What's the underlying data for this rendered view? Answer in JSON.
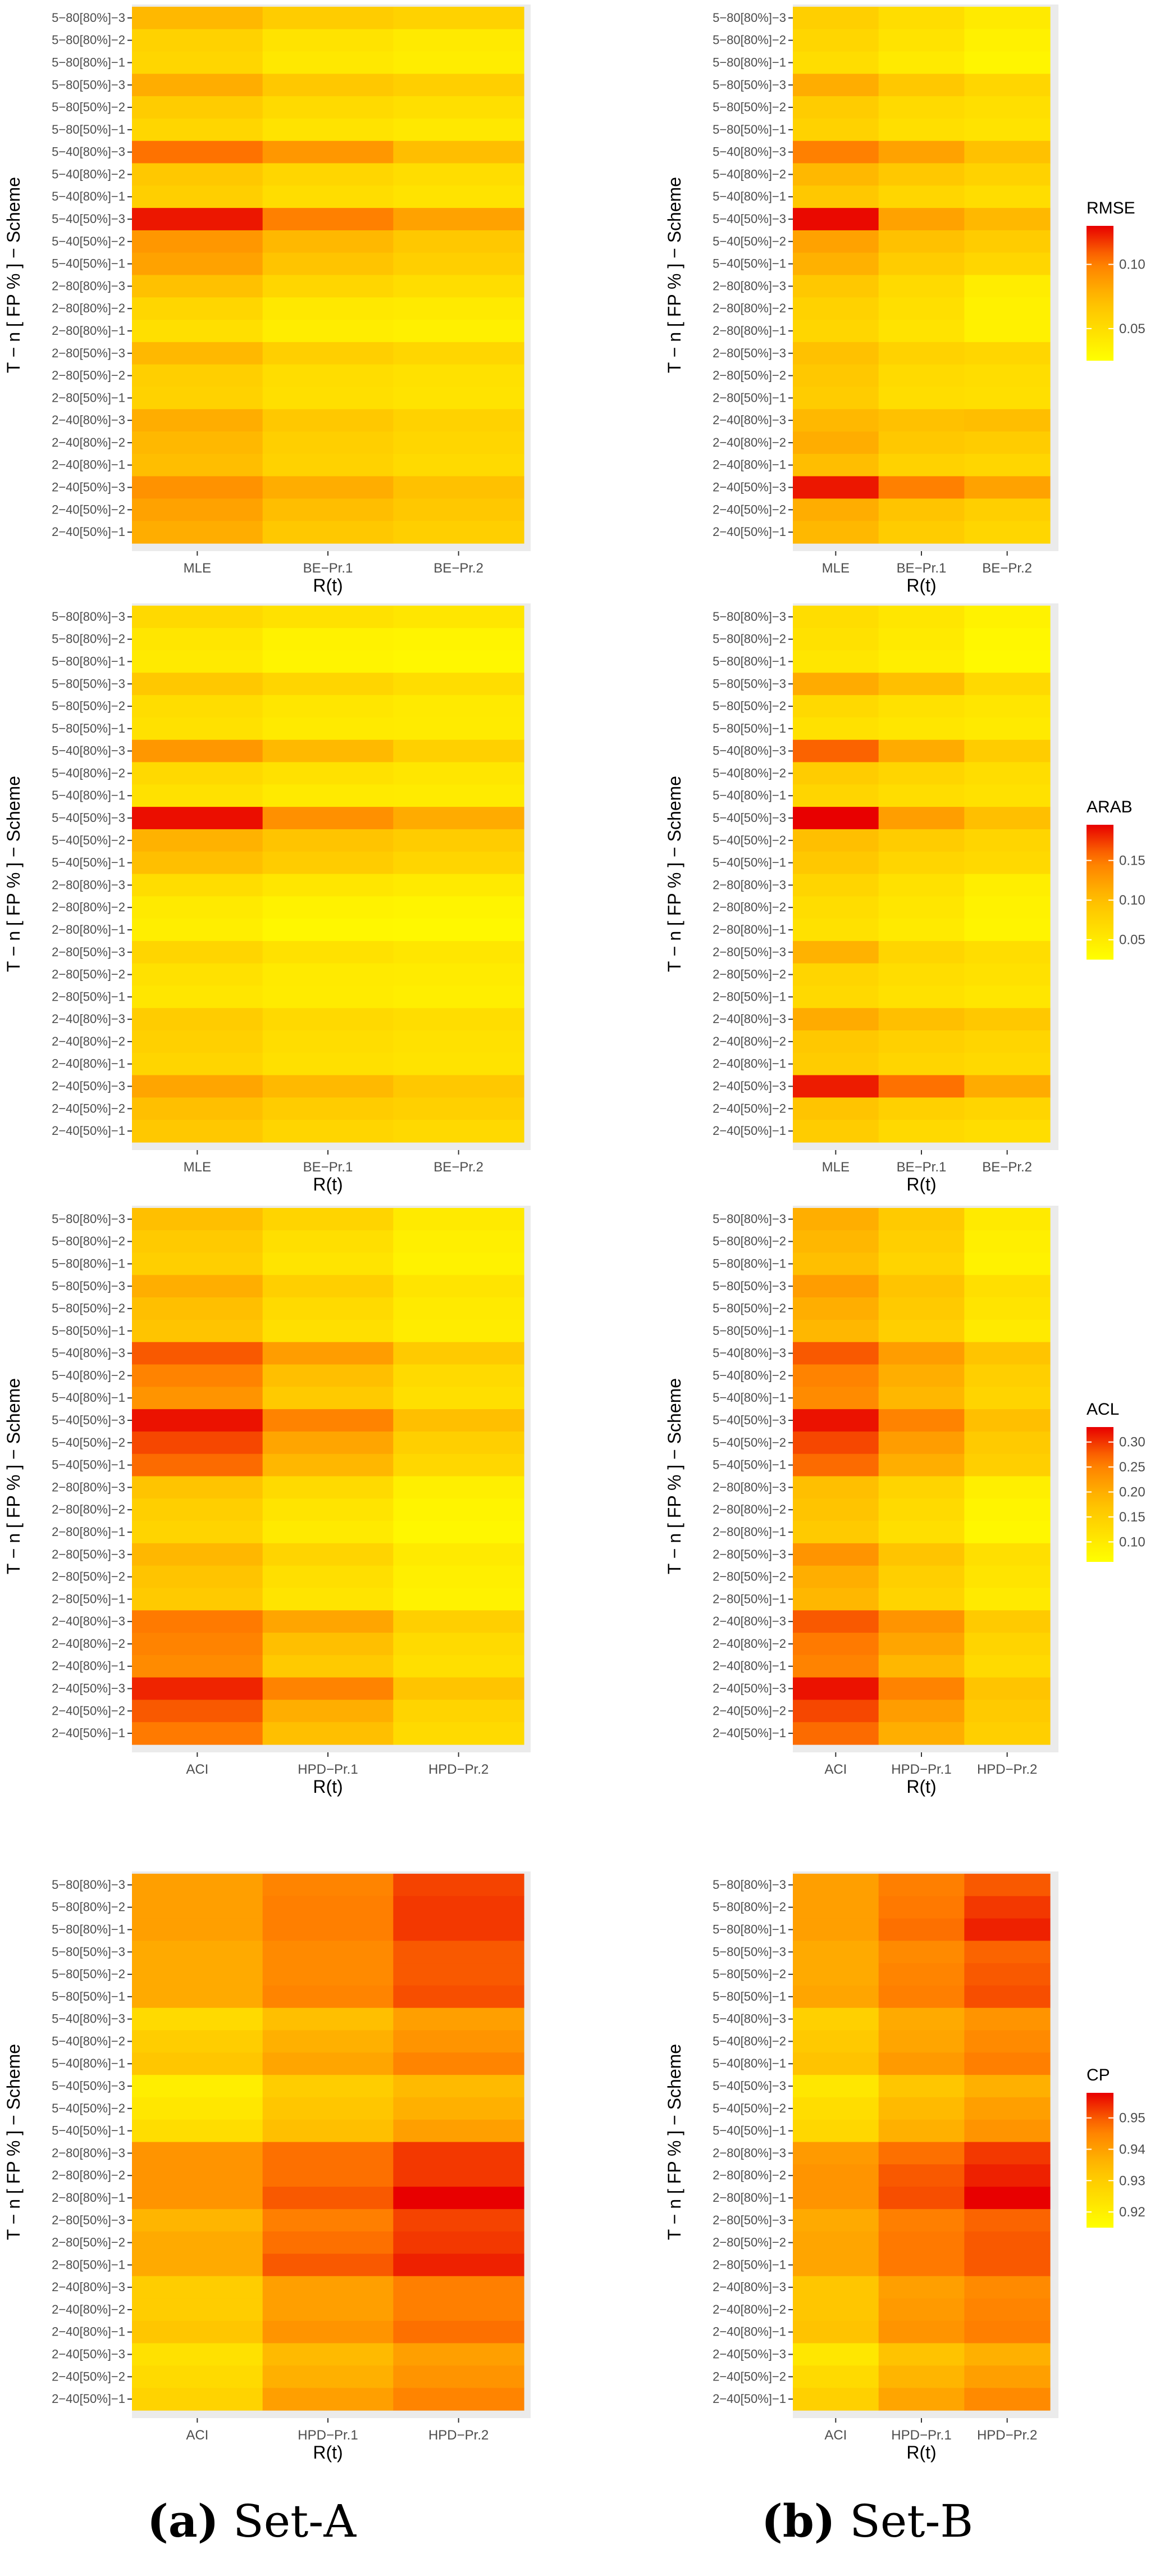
{
  "page": {
    "captions": [
      {
        "tag": "(a)",
        "text": "Set-A"
      },
      {
        "tag": "(b)",
        "text": "Set-B"
      }
    ]
  },
  "common": {
    "y_title": "T − n [ FP % ] − Scheme",
    "x_title": "R(t)",
    "rows": [
      "5−80[80%]−3",
      "5−80[80%]−2",
      "5−80[80%]−1",
      "5−80[50%]−3",
      "5−80[50%]−2",
      "5−80[50%]−1",
      "5−40[80%]−3",
      "5−40[80%]−2",
      "5−40[80%]−1",
      "5−40[50%]−3",
      "5−40[50%]−2",
      "5−40[50%]−1",
      "2−80[80%]−3",
      "2−80[80%]−2",
      "2−80[80%]−1",
      "2−80[50%]−3",
      "2−80[50%]−2",
      "2−80[50%]−1",
      "2−40[80%]−3",
      "2−40[80%]−2",
      "2−40[80%]−1",
      "2−40[50%]−3",
      "2−40[50%]−2",
      "2−40[50%]−1"
    ]
  },
  "chart_data": [
    {
      "type": "heatmap",
      "panel": "Set-A",
      "metric": "RMSE",
      "columns": [
        "MLE",
        "BE−Pr.1",
        "BE−Pr.2"
      ],
      "values": [
        [
          0.075,
          0.062,
          0.058
        ],
        [
          0.058,
          0.045,
          0.04
        ],
        [
          0.055,
          0.042,
          0.038
        ],
        [
          0.08,
          0.065,
          0.06
        ],
        [
          0.062,
          0.052,
          0.048
        ],
        [
          0.055,
          0.045,
          0.042
        ],
        [
          0.105,
          0.09,
          0.072
        ],
        [
          0.065,
          0.055,
          0.05
        ],
        [
          0.06,
          0.05,
          0.045
        ],
        [
          0.125,
          0.1,
          0.085
        ],
        [
          0.09,
          0.075,
          0.065
        ],
        [
          0.085,
          0.068,
          0.06
        ],
        [
          0.07,
          0.055,
          0.05
        ],
        [
          0.055,
          0.042,
          0.04
        ],
        [
          0.048,
          0.038,
          0.036
        ],
        [
          0.075,
          0.06,
          0.055
        ],
        [
          0.06,
          0.05,
          0.047
        ],
        [
          0.058,
          0.048,
          0.045
        ],
        [
          0.08,
          0.065,
          0.058
        ],
        [
          0.075,
          0.06,
          0.055
        ],
        [
          0.072,
          0.058,
          0.052
        ],
        [
          0.092,
          0.08,
          0.07
        ],
        [
          0.085,
          0.072,
          0.065
        ],
        [
          0.08,
          0.065,
          0.06
        ]
      ],
      "legend": {
        "title": "RMSE",
        "min": 0.025,
        "max": 0.13,
        "ticks": [
          0.05,
          0.1
        ]
      }
    },
    {
      "type": "heatmap",
      "panel": "Set-B",
      "metric": "RMSE",
      "columns": [
        "MLE",
        "BE−Pr.1",
        "BE−Pr.2"
      ],
      "values": [
        [
          0.06,
          0.05,
          0.04
        ],
        [
          0.055,
          0.045,
          0.035
        ],
        [
          0.05,
          0.04,
          0.032
        ],
        [
          0.08,
          0.065,
          0.055
        ],
        [
          0.062,
          0.052,
          0.048
        ],
        [
          0.058,
          0.048,
          0.045
        ],
        [
          0.1,
          0.085,
          0.07
        ],
        [
          0.075,
          0.065,
          0.058
        ],
        [
          0.065,
          0.055,
          0.05
        ],
        [
          0.128,
          0.085,
          0.075
        ],
        [
          0.085,
          0.07,
          0.062
        ],
        [
          0.078,
          0.062,
          0.055
        ],
        [
          0.065,
          0.052,
          0.038
        ],
        [
          0.058,
          0.048,
          0.035
        ],
        [
          0.055,
          0.045,
          0.035
        ],
        [
          0.07,
          0.058,
          0.055
        ],
        [
          0.065,
          0.052,
          0.05
        ],
        [
          0.062,
          0.05,
          0.048
        ],
        [
          0.075,
          0.07,
          0.072
        ],
        [
          0.08,
          0.065,
          0.062
        ],
        [
          0.072,
          0.058,
          0.055
        ],
        [
          0.125,
          0.1,
          0.085
        ],
        [
          0.08,
          0.068,
          0.06
        ],
        [
          0.075,
          0.062,
          0.055
        ]
      ],
      "legend": {
        "title": "RMSE",
        "min": 0.025,
        "max": 0.13,
        "ticks": [
          0.05,
          0.1
        ]
      }
    },
    {
      "type": "heatmap",
      "panel": "Set-A",
      "metric": "ARAB",
      "columns": [
        "MLE",
        "BE−Pr.1",
        "BE−Pr.2"
      ],
      "values": [
        [
          0.07,
          0.06,
          0.055
        ],
        [
          0.055,
          0.04,
          0.038
        ],
        [
          0.05,
          0.038,
          0.035
        ],
        [
          0.09,
          0.075,
          0.065
        ],
        [
          0.065,
          0.055,
          0.05
        ],
        [
          0.06,
          0.05,
          0.048
        ],
        [
          0.13,
          0.105,
          0.08
        ],
        [
          0.07,
          0.06,
          0.055
        ],
        [
          0.06,
          0.05,
          0.048
        ],
        [
          0.19,
          0.135,
          0.115
        ],
        [
          0.11,
          0.095,
          0.085
        ],
        [
          0.1,
          0.085,
          0.075
        ],
        [
          0.065,
          0.055,
          0.05
        ],
        [
          0.05,
          0.04,
          0.038
        ],
        [
          0.045,
          0.035,
          0.033
        ],
        [
          0.075,
          0.06,
          0.055
        ],
        [
          0.06,
          0.05,
          0.048
        ],
        [
          0.055,
          0.048,
          0.045
        ],
        [
          0.085,
          0.07,
          0.065
        ],
        [
          0.08,
          0.065,
          0.06
        ],
        [
          0.075,
          0.062,
          0.058
        ],
        [
          0.12,
          0.105,
          0.09
        ],
        [
          0.1,
          0.085,
          0.08
        ],
        [
          0.09,
          0.075,
          0.07
        ]
      ],
      "legend": {
        "title": "ARAB",
        "min": 0.025,
        "max": 0.195,
        "ticks": [
          0.05,
          0.1,
          0.15
        ]
      }
    },
    {
      "type": "heatmap",
      "panel": "Set-B",
      "metric": "ARAB",
      "columns": [
        "MLE",
        "BE−Pr.1",
        "BE−Pr.2"
      ],
      "values": [
        [
          0.065,
          0.055,
          0.04
        ],
        [
          0.06,
          0.05,
          0.035
        ],
        [
          0.055,
          0.045,
          0.032
        ],
        [
          0.115,
          0.1,
          0.07
        ],
        [
          0.07,
          0.06,
          0.055
        ],
        [
          0.06,
          0.055,
          0.05
        ],
        [
          0.16,
          0.115,
          0.085
        ],
        [
          0.085,
          0.075,
          0.065
        ],
        [
          0.075,
          0.065,
          0.06
        ],
        [
          0.195,
          0.125,
          0.1
        ],
        [
          0.1,
          0.085,
          0.075
        ],
        [
          0.09,
          0.075,
          0.07
        ],
        [
          0.075,
          0.06,
          0.045
        ],
        [
          0.065,
          0.055,
          0.04
        ],
        [
          0.06,
          0.05,
          0.038
        ],
        [
          0.11,
          0.075,
          0.065
        ],
        [
          0.075,
          0.065,
          0.06
        ],
        [
          0.07,
          0.06,
          0.055
        ],
        [
          0.115,
          0.1,
          0.09
        ],
        [
          0.09,
          0.08,
          0.075
        ],
        [
          0.085,
          0.075,
          0.07
        ],
        [
          0.185,
          0.155,
          0.115
        ],
        [
          0.095,
          0.08,
          0.075
        ],
        [
          0.085,
          0.07,
          0.065
        ]
      ],
      "legend": {
        "title": "ARAB",
        "min": 0.025,
        "max": 0.195,
        "ticks": [
          0.05,
          0.1,
          0.15
        ]
      }
    },
    {
      "type": "heatmap",
      "panel": "Set-A",
      "metric": "ACL",
      "columns": [
        "ACI",
        "HPD−Pr.1",
        "HPD−Pr.2"
      ],
      "values": [
        [
          0.18,
          0.14,
          0.1
        ],
        [
          0.16,
          0.12,
          0.09
        ],
        [
          0.15,
          0.11,
          0.085
        ],
        [
          0.2,
          0.15,
          0.11
        ],
        [
          0.18,
          0.13,
          0.1
        ],
        [
          0.17,
          0.12,
          0.095
        ],
        [
          0.28,
          0.22,
          0.16
        ],
        [
          0.25,
          0.18,
          0.13
        ],
        [
          0.23,
          0.16,
          0.12
        ],
        [
          0.32,
          0.25,
          0.18
        ],
        [
          0.29,
          0.21,
          0.15
        ],
        [
          0.27,
          0.19,
          0.135
        ],
        [
          0.17,
          0.13,
          0.09
        ],
        [
          0.15,
          0.11,
          0.08
        ],
        [
          0.14,
          0.1,
          0.075
        ],
        [
          0.19,
          0.14,
          0.1
        ],
        [
          0.17,
          0.12,
          0.09
        ],
        [
          0.16,
          0.11,
          0.085
        ],
        [
          0.26,
          0.21,
          0.15
        ],
        [
          0.25,
          0.18,
          0.13
        ],
        [
          0.24,
          0.16,
          0.12
        ],
        [
          0.31,
          0.25,
          0.17
        ],
        [
          0.28,
          0.2,
          0.14
        ],
        [
          0.26,
          0.18,
          0.13
        ]
      ],
      "legend": {
        "title": "ACL",
        "min": 0.06,
        "max": 0.33,
        "ticks": [
          0.1,
          0.15,
          0.2,
          0.25,
          0.3
        ]
      }
    },
    {
      "type": "heatmap",
      "panel": "Set-B",
      "metric": "ACL",
      "columns": [
        "ACI",
        "HPD−Pr.1",
        "HPD−Pr.2"
      ],
      "values": [
        [
          0.2,
          0.16,
          0.1
        ],
        [
          0.19,
          0.15,
          0.09
        ],
        [
          0.18,
          0.14,
          0.085
        ],
        [
          0.22,
          0.17,
          0.12
        ],
        [
          0.2,
          0.16,
          0.11
        ],
        [
          0.19,
          0.15,
          0.1
        ],
        [
          0.28,
          0.22,
          0.17
        ],
        [
          0.25,
          0.2,
          0.15
        ],
        [
          0.24,
          0.19,
          0.14
        ],
        [
          0.32,
          0.25,
          0.18
        ],
        [
          0.29,
          0.22,
          0.16
        ],
        [
          0.27,
          0.2,
          0.15
        ],
        [
          0.18,
          0.14,
          0.09
        ],
        [
          0.17,
          0.13,
          0.08
        ],
        [
          0.16,
          0.12,
          0.075
        ],
        [
          0.23,
          0.17,
          0.12
        ],
        [
          0.2,
          0.15,
          0.11
        ],
        [
          0.19,
          0.14,
          0.1
        ],
        [
          0.28,
          0.23,
          0.16
        ],
        [
          0.26,
          0.21,
          0.14
        ],
        [
          0.25,
          0.19,
          0.13
        ],
        [
          0.32,
          0.25,
          0.17
        ],
        [
          0.29,
          0.22,
          0.16
        ],
        [
          0.27,
          0.2,
          0.15
        ]
      ],
      "legend": {
        "title": "ACL",
        "min": 0.06,
        "max": 0.33,
        "ticks": [
          0.1,
          0.15,
          0.2,
          0.25,
          0.3
        ]
      }
    },
    {
      "type": "heatmap",
      "panel": "Set-A",
      "metric": "CP",
      "columns": [
        "ACI",
        "HPD−Pr.1",
        "HPD−Pr.2"
      ],
      "values": [
        [
          0.94,
          0.945,
          0.952
        ],
        [
          0.94,
          0.946,
          0.953
        ],
        [
          0.94,
          0.946,
          0.953
        ],
        [
          0.938,
          0.944,
          0.95
        ],
        [
          0.938,
          0.944,
          0.95
        ],
        [
          0.938,
          0.945,
          0.951
        ],
        [
          0.926,
          0.934,
          0.94
        ],
        [
          0.93,
          0.937,
          0.942
        ],
        [
          0.932,
          0.939,
          0.945
        ],
        [
          0.92,
          0.93,
          0.935
        ],
        [
          0.922,
          0.932,
          0.937
        ],
        [
          0.925,
          0.934,
          0.94
        ],
        [
          0.942,
          0.948,
          0.953
        ],
        [
          0.942,
          0.948,
          0.953
        ],
        [
          0.942,
          0.95,
          0.958
        ],
        [
          0.936,
          0.946,
          0.952
        ],
        [
          0.938,
          0.948,
          0.953
        ],
        [
          0.938,
          0.95,
          0.955
        ],
        [
          0.93,
          0.94,
          0.946
        ],
        [
          0.93,
          0.94,
          0.946
        ],
        [
          0.932,
          0.942,
          0.948
        ],
        [
          0.924,
          0.935,
          0.94
        ],
        [
          0.926,
          0.937,
          0.942
        ],
        [
          0.928,
          0.94,
          0.945
        ]
      ],
      "legend": {
        "title": "CP",
        "min": 0.915,
        "max": 0.958,
        "ticks": [
          0.92,
          0.93,
          0.94,
          0.95
        ]
      }
    },
    {
      "type": "heatmap",
      "panel": "Set-B",
      "metric": "CP",
      "columns": [
        "ACI",
        "HPD−Pr.1",
        "HPD−Pr.2"
      ],
      "values": [
        [
          0.94,
          0.946,
          0.95
        ],
        [
          0.94,
          0.947,
          0.953
        ],
        [
          0.94,
          0.948,
          0.955
        ],
        [
          0.938,
          0.944,
          0.949
        ],
        [
          0.938,
          0.945,
          0.95
        ],
        [
          0.939,
          0.946,
          0.951
        ],
        [
          0.929,
          0.938,
          0.942
        ],
        [
          0.931,
          0.939,
          0.944
        ],
        [
          0.933,
          0.941,
          0.946
        ],
        [
          0.922,
          0.932,
          0.937
        ],
        [
          0.925,
          0.935,
          0.94
        ],
        [
          0.927,
          0.937,
          0.942
        ],
        [
          0.941,
          0.948,
          0.953
        ],
        [
          0.942,
          0.95,
          0.955
        ],
        [
          0.942,
          0.951,
          0.958
        ],
        [
          0.938,
          0.946,
          0.949
        ],
        [
          0.939,
          0.947,
          0.95
        ],
        [
          0.939,
          0.947,
          0.95
        ],
        [
          0.932,
          0.94,
          0.944
        ],
        [
          0.932,
          0.941,
          0.945
        ],
        [
          0.933,
          0.942,
          0.946
        ],
        [
          0.922,
          0.933,
          0.937
        ],
        [
          0.926,
          0.936,
          0.94
        ],
        [
          0.929,
          0.939,
          0.944
        ]
      ],
      "legend": {
        "title": "CP",
        "min": 0.915,
        "max": 0.958,
        "ticks": [
          0.92,
          0.93,
          0.94,
          0.95
        ]
      }
    }
  ]
}
